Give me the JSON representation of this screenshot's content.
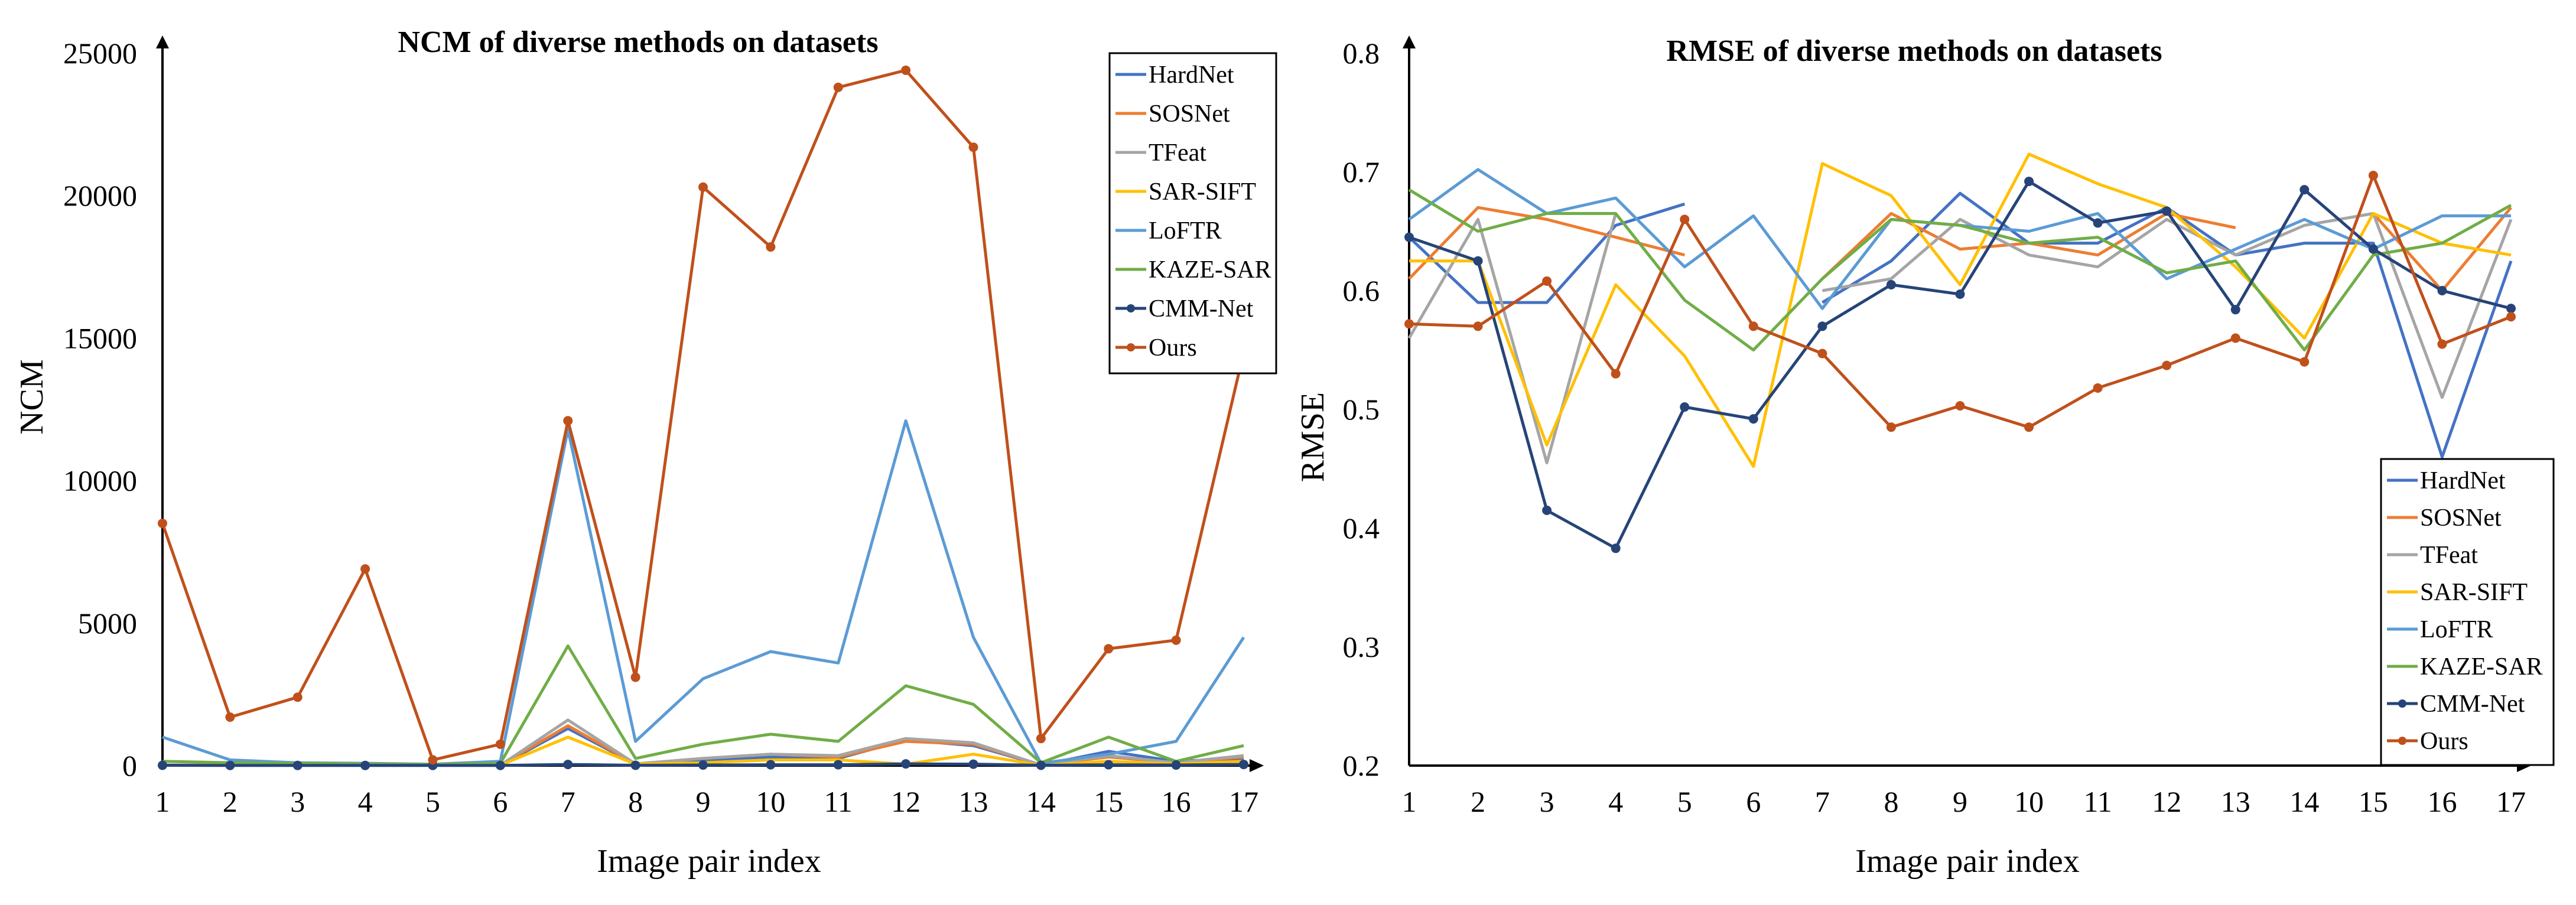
{
  "colors": {
    "HardNet": "#4472C4",
    "SOSNet": "#ED7D31",
    "TFeat": "#A5A5A5",
    "SAR-SIFT": "#FFC000",
    "LoFTR": "#5B9BD5",
    "KAZE-SAR": "#70AD47",
    "CMM-Net": "#264478",
    "Ours": "#C0501B"
  },
  "chart_data": [
    {
      "type": "line",
      "title": "NCM of diverse methods on datasets",
      "xlabel": "Image pair index",
      "ylabel": "NCM",
      "x": [
        1,
        2,
        3,
        4,
        5,
        6,
        7,
        8,
        9,
        10,
        11,
        12,
        13,
        14,
        15,
        16,
        17
      ],
      "ylim": [
        0,
        25000
      ],
      "yticks": [
        0,
        5000,
        10000,
        15000,
        20000,
        25000
      ],
      "legend": [
        "HardNet",
        "SOSNet",
        "TFeat",
        "SAR-SIFT",
        "LoFTR",
        "KAZE-SAR",
        "CMM-Net",
        "Ours"
      ],
      "legend_position": "top-right",
      "series": [
        {
          "name": "HardNet",
          "values": [
            20,
            10,
            10,
            10,
            10,
            10,
            1300,
            60,
            200,
            300,
            250,
            900,
            700,
            20,
            500,
            150,
            250
          ]
        },
        {
          "name": "SOSNet",
          "values": [
            20,
            10,
            10,
            10,
            10,
            10,
            1400,
            60,
            250,
            400,
            300,
            850,
            750,
            20,
            300,
            100,
            300
          ]
        },
        {
          "name": "TFeat",
          "values": [
            20,
            10,
            10,
            10,
            10,
            10,
            1600,
            60,
            250,
            400,
            350,
            950,
            800,
            20,
            350,
            100,
            350
          ]
        },
        {
          "name": "SAR-SIFT",
          "values": [
            10,
            10,
            10,
            10,
            10,
            10,
            1000,
            50,
            100,
            200,
            200,
            50,
            400,
            10,
            150,
            60,
            150
          ]
        },
        {
          "name": "LoFTR",
          "values": [
            1000,
            200,
            100,
            80,
            50,
            150,
            11800,
            850,
            3050,
            4000,
            3600,
            12100,
            4500,
            80,
            400,
            850,
            4500
          ]
        },
        {
          "name": "KAZE-SAR",
          "values": [
            150,
            100,
            80,
            60,
            40,
            80,
            4200,
            250,
            750,
            1100,
            850,
            2800,
            2150,
            100,
            1000,
            150,
            700
          ]
        },
        {
          "name": "CMM-Net",
          "values": [
            10,
            5,
            5,
            5,
            5,
            5,
            40,
            10,
            20,
            30,
            30,
            60,
            50,
            10,
            30,
            20,
            40
          ]
        },
        {
          "name": "Ours",
          "values": [
            8500,
            1700,
            2400,
            6900,
            200,
            750,
            12100,
            3100,
            20300,
            18200,
            23800,
            24400,
            21700,
            950,
            4100,
            4400,
            14500
          ]
        }
      ]
    },
    {
      "type": "line",
      "title": "RMSE of diverse methods on datasets",
      "xlabel": "Image pair index",
      "ylabel": "RMSE",
      "x": [
        1,
        2,
        3,
        4,
        5,
        6,
        7,
        8,
        9,
        10,
        11,
        12,
        13,
        14,
        15,
        16,
        17
      ],
      "ylim": [
        0.2,
        0.8
      ],
      "yticks": [
        0.2,
        0.3,
        0.4,
        0.5,
        0.6,
        0.7,
        0.8
      ],
      "legend": [
        "HardNet",
        "SOSNet",
        "TFeat",
        "SAR-SIFT",
        "LoFTR",
        "KAZE-SAR",
        "CMM-Net",
        "Ours"
      ],
      "legend_position": "bottom-right",
      "series": [
        {
          "name": "HardNet",
          "values": [
            0.645,
            0.59,
            0.59,
            0.655,
            0.673,
            null,
            0.59,
            0.625,
            0.682,
            0.64,
            0.64,
            0.67,
            0.63,
            0.64,
            0.64,
            0.46,
            0.625
          ]
        },
        {
          "name": "SOSNet",
          "values": [
            0.61,
            0.67,
            0.66,
            0.645,
            0.63,
            null,
            0.61,
            0.665,
            0.635,
            0.64,
            0.63,
            0.665,
            0.653,
            null,
            0.665,
            0.6,
            0.67
          ]
        },
        {
          "name": "TFeat",
          "values": [
            0.56,
            0.66,
            0.455,
            0.665,
            null,
            null,
            0.6,
            0.61,
            0.66,
            0.63,
            0.62,
            0.66,
            0.63,
            0.655,
            0.665,
            0.51,
            0.66
          ]
        },
        {
          "name": "SAR-SIFT",
          "values": [
            0.625,
            0.625,
            0.47,
            0.605,
            0.545,
            0.452,
            0.707,
            0.68,
            0.605,
            0.715,
            0.69,
            0.67,
            0.62,
            0.56,
            0.665,
            0.64,
            0.63
          ]
        },
        {
          "name": "LoFTR",
          "values": [
            0.66,
            0.702,
            0.665,
            0.678,
            0.62,
            0.663,
            0.585,
            0.66,
            0.655,
            0.65,
            0.665,
            0.61,
            0.635,
            0.66,
            0.635,
            0.663,
            0.663
          ]
        },
        {
          "name": "KAZE-SAR",
          "values": [
            0.685,
            0.65,
            0.665,
            0.665,
            0.592,
            0.55,
            0.61,
            0.66,
            0.655,
            0.64,
            0.645,
            0.615,
            0.625,
            0.55,
            0.63,
            0.64,
            0.672
          ]
        },
        {
          "name": "CMM-Net",
          "values": [
            0.645,
            0.625,
            0.415,
            0.383,
            0.502,
            0.492,
            0.57,
            0.605,
            0.597,
            0.692,
            0.657,
            0.667,
            0.584,
            0.685,
            0.635,
            0.6,
            0.585
          ]
        },
        {
          "name": "Ours",
          "values": [
            0.572,
            0.57,
            0.608,
            0.53,
            0.66,
            0.57,
            0.547,
            0.485,
            0.503,
            0.485,
            0.518,
            0.537,
            0.56,
            0.54,
            0.697,
            0.555,
            0.578
          ]
        }
      ]
    }
  ]
}
